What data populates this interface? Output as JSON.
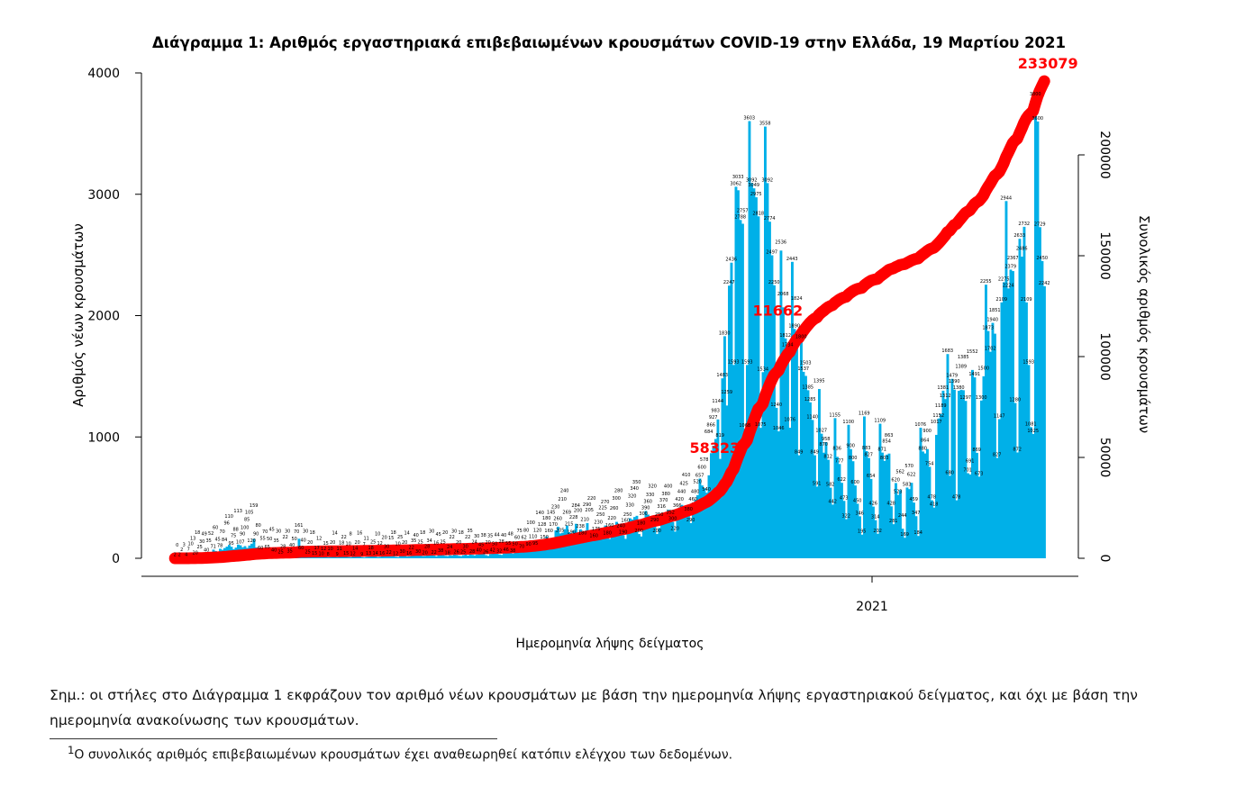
{
  "chart_data": {
    "type": "bar+line",
    "title": "Διάγραμμα 1: Αριθμός εργαστηριακά επιβεβαιωμένων κρουσμάτων COVID-19 στην Ελλάδα, 19 Μαρτίου 2021",
    "xlabel": "Ημερομηνία λήψης δείγματος",
    "ylabel": "Αριθμός νέων κρουσμάτων",
    "y2label": "Συνολικός αριθμός κρουσμάτων",
    "ylim": [
      0,
      4000
    ],
    "yticks": [
      "0",
      "1000",
      "2000",
      "3000",
      "4000"
    ],
    "y2lim": [
      0,
      200000
    ],
    "y2ticks": [
      "0",
      "50000",
      "100000",
      "150000",
      "200000"
    ],
    "x_start": "2020-02-26",
    "x_end": "2021-03-18",
    "xticks": [
      {
        "date": "2021-01-01",
        "label": "2021"
      }
    ],
    "grid": false,
    "bar_color": "#00b0e8",
    "line_color": "#ff0000",
    "daily_new_cases": [
      2,
      0,
      2,
      2,
      3,
      4,
      7,
      10,
      13,
      20,
      18,
      25,
      30,
      49,
      40,
      35,
      52,
      71,
      60,
      45,
      78,
      70,
      84,
      96,
      110,
      95,
      75,
      88,
      113,
      107,
      90,
      100,
      85,
      105,
      120,
      159,
      90,
      80,
      60,
      55,
      70,
      65,
      50,
      45,
      40,
      35,
      30,
      25,
      28,
      22,
      30,
      35,
      40,
      50,
      70,
      161,
      60,
      40,
      30,
      25,
      20,
      18,
      15,
      17,
      12,
      10,
      12,
      15,
      8,
      10,
      20,
      14,
      9,
      11,
      18,
      22,
      15,
      10,
      8,
      12,
      14,
      20,
      16,
      9,
      7,
      11,
      13,
      18,
      25,
      14,
      10,
      12,
      16,
      20,
      30,
      22,
      15,
      18,
      12,
      10,
      25,
      30,
      20,
      14,
      16,
      22,
      35,
      40,
      30,
      25,
      18,
      20,
      28,
      34,
      30,
      22,
      16,
      45,
      38,
      25,
      20,
      18,
      24,
      22,
      30,
      26,
      20,
      18,
      25,
      30,
      22,
      35,
      28,
      24,
      30,
      40,
      45,
      38,
      26,
      20,
      35,
      42,
      50,
      44,
      32,
      28,
      40,
      46,
      55,
      48,
      38,
      50,
      60,
      75,
      70,
      62,
      80,
      90,
      100,
      110,
      95,
      120,
      140,
      128,
      150,
      180,
      160,
      145,
      170,
      230,
      260,
      205,
      210,
      240,
      269,
      215,
      190,
      228,
      284,
      200,
      238,
      180,
      210,
      290,
      205,
      220,
      160,
      175,
      230,
      250,
      225,
      270,
      180,
      160,
      220,
      260,
      300,
      280,
      240,
      190,
      160,
      250,
      330,
      320,
      340,
      350,
      200,
      180,
      300,
      390,
      360,
      330,
      320,
      290,
      200,
      250,
      316,
      370,
      380,
      400,
      352,
      300,
      220,
      366,
      420,
      440,
      425,
      410,
      380,
      290,
      460,
      480,
      520,
      657,
      600,
      578,
      540,
      684,
      866,
      927,
      983,
      1144,
      819,
      1483,
      1830,
      1259,
      2247,
      2436,
      1593,
      3062,
      3033,
      2788,
      2757,
      1068,
      1593,
      3603,
      3092,
      3049,
      2975,
      2818,
      1075,
      1534,
      3558,
      3092,
      2774,
      2497,
      2250,
      1240,
      1046,
      2536,
      2068,
      1812,
      1734,
      1076,
      2443,
      1890,
      1824,
      849,
      1800,
      1537,
      1503,
      1385,
      1285,
      1140,
      849,
      591,
      1395,
      1027,
      870,
      958,
      812,
      582,
      442,
      1155,
      836,
      777,
      622,
      473,
      322,
      1100,
      900,
      800,
      600,
      450,
      346,
      195,
      1169,
      883,
      827,
      654,
      426,
      314,
      202,
      1109,
      871,
      803,
      854,
      863,
      428,
      281,
      620,
      523,
      562,
      244,
      169,
      583,
      570,
      622,
      459,
      347,
      184,
      1076,
      880,
      864,
      900,
      754,
      478,
      418,
      1017,
      1152,
      1189,
      1381,
      1312,
      1683,
      680,
      1479,
      1390,
      478,
      1380,
      1389,
      1385,
      1297,
      701,
      691,
      1552,
      1491,
      869,
      673,
      1300,
      1500,
      2255,
      1873,
      1702,
      1940,
      1851,
      827,
      1147,
      2109,
      2275,
      2944,
      2224,
      2379,
      2367,
      1280,
      872,
      2633,
      2486,
      2732,
      2109,
      1593,
      1081,
      1025,
      3800,
      3600,
      2729,
      2450,
      2242
    ],
    "cumulative_annotations": [
      {
        "label": "58323"
      },
      {
        "label": "11662"
      },
      {
        "label": "233079"
      }
    ]
  },
  "notes": {
    "main": "Σημ.: οι στήλες στο Διάγραμμα 1 εκφράζουν τον αριθμό νέων κρουσμάτων με βάση την ημερομηνία λήψης εργαστηριακού δείγματος, και όχι με βάση την ημερομηνία ανακοίνωσης των κρουσμάτων.",
    "footnote_mark": "1",
    "footnote": "Ο συνολικός αριθμός επιβεβαιωμένων κρουσμάτων έχει αναθεωρηθεί κατόπιν ελέγχου των δεδομένων."
  }
}
